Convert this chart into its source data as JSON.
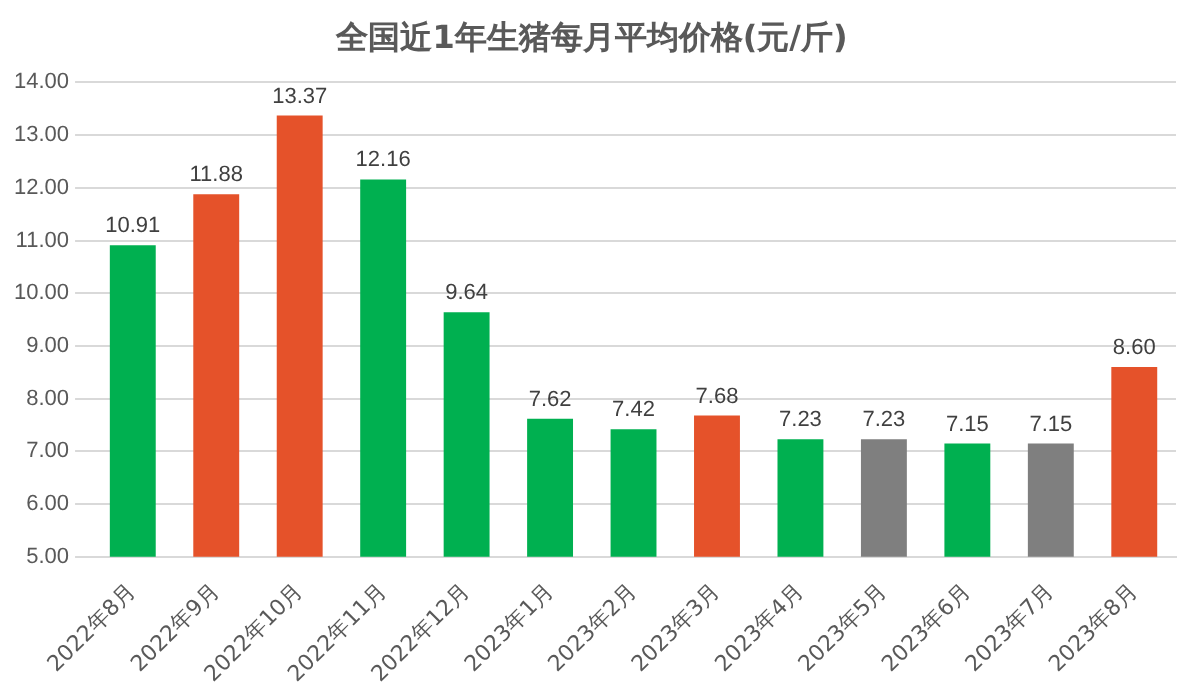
{
  "chart_data": {
    "type": "bar",
    "title": "全国近1年生猪每月平均价格(元/斤)",
    "categories": [
      "2022年8月",
      "2022年9月",
      "2022年10月",
      "2022年11月",
      "2022年12月",
      "2023年1月",
      "2023年2月",
      "2023年3月",
      "2023年4月",
      "2023年5月",
      "2023年6月",
      "2023年7月",
      "2023年8月"
    ],
    "values": [
      10.91,
      11.88,
      13.37,
      12.16,
      9.64,
      7.62,
      7.42,
      7.68,
      7.23,
      7.23,
      7.15,
      7.15,
      8.6
    ],
    "value_labels": [
      "10.91",
      "11.88",
      "13.37",
      "12.16",
      "9.64",
      "7.62",
      "7.42",
      "7.68",
      "7.23",
      "7.23",
      "7.15",
      "7.15",
      "8.60"
    ],
    "colors": [
      "#00b050",
      "#e5522a",
      "#e5522a",
      "#00b050",
      "#00b050",
      "#00b050",
      "#00b050",
      "#e5522a",
      "#00b050",
      "#7f7f7f",
      "#00b050",
      "#7f7f7f",
      "#e5522a"
    ],
    "ylim": [
      5,
      14
    ],
    "yticks": [
      {
        "value": 5,
        "label": "5.00"
      },
      {
        "value": 6,
        "label": "6.00"
      },
      {
        "value": 7,
        "label": "7.00"
      },
      {
        "value": 8,
        "label": "8.00"
      },
      {
        "value": 9,
        "label": "9.00"
      },
      {
        "value": 10,
        "label": "10.00"
      },
      {
        "value": 11,
        "label": "11.00"
      },
      {
        "value": 12,
        "label": "12.00"
      },
      {
        "value": 13,
        "label": "13.00"
      },
      {
        "value": 14,
        "label": "14.00"
      }
    ],
    "grid": "y"
  }
}
